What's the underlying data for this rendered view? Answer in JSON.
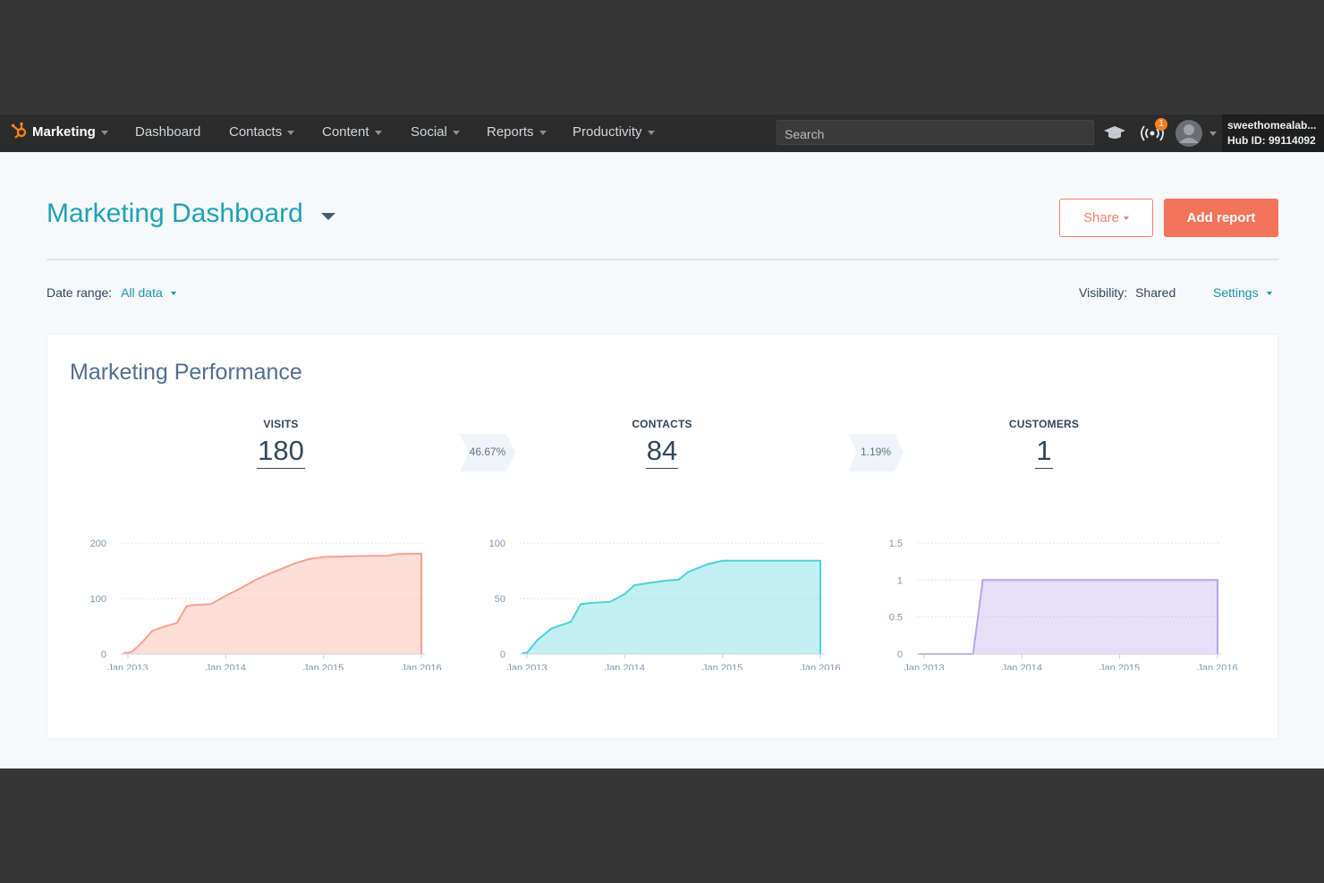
{
  "nav": {
    "brand": "Marketing",
    "items": [
      "Dashboard",
      "Contacts",
      "Content",
      "Social",
      "Reports",
      "Productivity"
    ],
    "search_placeholder": "Search",
    "notification_count": "1",
    "account_name": "sweethomealab...",
    "hub_id": "Hub ID: 99114092",
    "icons": [
      "sprocket-logo-icon",
      "academy-cap-icon",
      "notifications-icon",
      "avatar-icon"
    ]
  },
  "header": {
    "title": "Marketing Dashboard",
    "share_label": "Share",
    "add_report_label": "Add report"
  },
  "filters": {
    "date_range_label": "Date range:",
    "date_range_value": "All data",
    "visibility_label": "Visibility:",
    "visibility_value": "Shared",
    "settings_label": "Settings"
  },
  "card": {
    "title": "Marketing Performance",
    "kpis": [
      {
        "label": "VISITS",
        "value": "180"
      },
      {
        "label": "CONTACTS",
        "value": "84"
      },
      {
        "label": "CUSTOMERS",
        "value": "1"
      }
    ],
    "conversion_rates": [
      "46.67%",
      "1.19%"
    ]
  },
  "colors": {
    "accent": "#1fa2b5",
    "cta": "#f2745b",
    "visits": "#f9a18f",
    "contacts": "#4fd1d9",
    "customers": "#b9a4ea"
  },
  "chart_data": [
    {
      "type": "area",
      "series_name": "Visits",
      "x_labels": [
        "Jan 2013",
        "Jan 2014",
        "Jan 2015",
        "Jan 2016"
      ],
      "x": [
        2012.95,
        2013.0,
        2013.05,
        2013.15,
        2013.25,
        2013.35,
        2013.5,
        2013.6,
        2013.65,
        2013.85,
        2014.0,
        2014.15,
        2014.3,
        2014.45,
        2014.55,
        2014.7,
        2014.85,
        2015.0,
        2015.25,
        2015.5,
        2015.65,
        2015.75,
        2016.0
      ],
      "y": [
        2,
        2,
        5,
        22,
        42,
        48,
        56,
        86,
        88,
        90,
        105,
        118,
        133,
        145,
        152,
        163,
        171,
        175,
        176,
        177,
        177,
        180,
        181
      ],
      "ylim": [
        0,
        200
      ],
      "yticks": [
        0,
        100,
        200
      ]
    },
    {
      "type": "area",
      "series_name": "Contacts",
      "x_labels": [
        "Jan 2013",
        "Jan 2014",
        "Jan 2015",
        "Jan 2016"
      ],
      "x": [
        2012.95,
        2013.0,
        2013.1,
        2013.25,
        2013.45,
        2013.55,
        2013.65,
        2013.85,
        2014.0,
        2014.1,
        2014.25,
        2014.4,
        2014.55,
        2014.65,
        2014.85,
        2015.0,
        2015.5,
        2016.0
      ],
      "y": [
        1,
        1,
        12,
        23,
        29,
        45,
        46,
        47,
        54,
        62,
        64,
        66,
        67,
        74,
        81,
        84,
        84,
        84
      ],
      "ylim": [
        0,
        100
      ],
      "yticks": [
        0,
        50,
        100
      ]
    },
    {
      "type": "area",
      "series_name": "Customers",
      "x_labels": [
        "Jan 2013",
        "Jan 2014",
        "Jan 2015",
        "Jan 2016"
      ],
      "x": [
        2012.95,
        2013.5,
        2013.6,
        2014.0,
        2015.0,
        2016.0
      ],
      "y": [
        0,
        0,
        1,
        1,
        1,
        1
      ],
      "ylim": [
        0,
        1.5
      ],
      "yticks": [
        0,
        0.5,
        1,
        1.5
      ]
    }
  ]
}
